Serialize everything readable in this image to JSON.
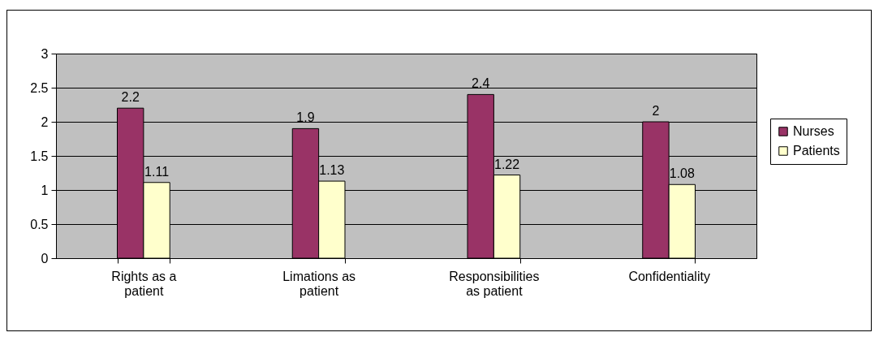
{
  "chart_data": {
    "type": "bar",
    "categories": [
      "Rights as a patient",
      "Limations as patient",
      "Responsibilities as patient",
      "Confidentiality"
    ],
    "series": [
      {
        "name": "Nurses",
        "color": "#993366",
        "values": [
          2.2,
          1.9,
          2.4,
          2
        ]
      },
      {
        "name": "Patients",
        "color": "#ffffcc",
        "values": [
          1.11,
          1.13,
          1.22,
          1.08
        ]
      }
    ],
    "ylim": [
      0,
      3
    ],
    "yticks": [
      0,
      0.5,
      1,
      1.5,
      2,
      2.5,
      3
    ],
    "grid": "y",
    "legend": "right",
    "data_labels": true
  }
}
